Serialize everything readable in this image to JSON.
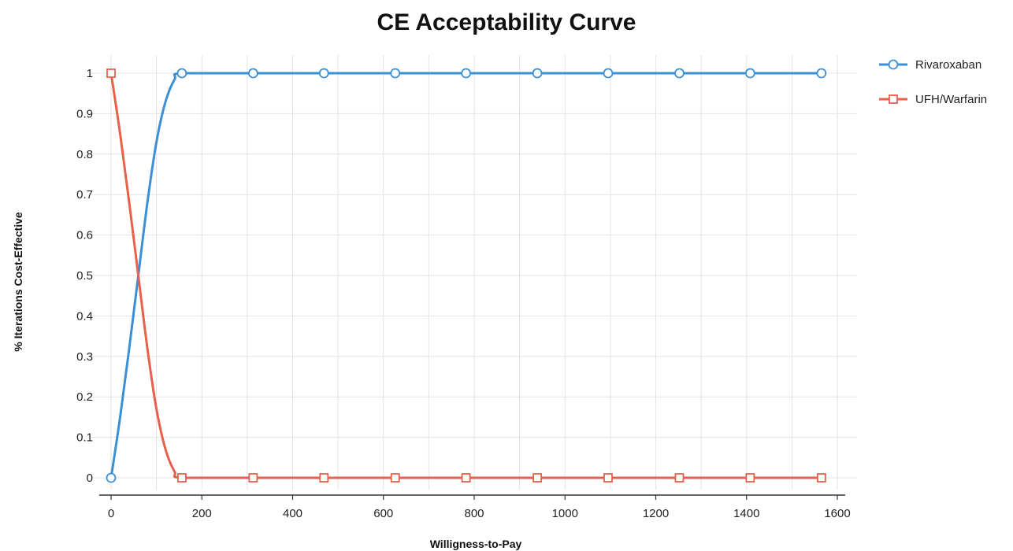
{
  "chart_data": {
    "type": "line",
    "title": "CE Acceptability Curve",
    "xlabel": "Willigness-to-Pay",
    "ylabel": "% Iterations Cost-Effective",
    "xlim": [
      0,
      1600
    ],
    "ylim": [
      0,
      1
    ],
    "xticks": [
      0,
      200,
      400,
      600,
      800,
      1000,
      1200,
      1400,
      1600
    ],
    "yticks": [
      0,
      0.1,
      0.2,
      0.3,
      0.4,
      0.5,
      0.6,
      0.7,
      0.8,
      0.9,
      1
    ],
    "grid": true,
    "legend_position": "right",
    "series": [
      {
        "name": "Rivaroxaban",
        "color": "#3a8fd6",
        "marker": "circle",
        "markers": [
          [
            0,
            0
          ],
          [
            156,
            1
          ],
          [
            313,
            1
          ],
          [
            469,
            1
          ],
          [
            626,
            1
          ],
          [
            782,
            1
          ],
          [
            939,
            1
          ],
          [
            1095,
            1
          ],
          [
            1252,
            1
          ],
          [
            1408,
            1
          ],
          [
            1565,
            1
          ]
        ],
        "curve": [
          [
            0,
            0
          ],
          [
            20,
            0.15
          ],
          [
            40,
            0.32
          ],
          [
            60,
            0.5
          ],
          [
            80,
            0.68
          ],
          [
            100,
            0.83
          ],
          [
            120,
            0.93
          ],
          [
            140,
            0.985
          ],
          [
            156,
            1
          ],
          [
            313,
            1
          ],
          [
            469,
            1
          ],
          [
            626,
            1
          ],
          [
            782,
            1
          ],
          [
            939,
            1
          ],
          [
            1095,
            1
          ],
          [
            1252,
            1
          ],
          [
            1408,
            1
          ],
          [
            1565,
            1
          ]
        ]
      },
      {
        "name": "UFH/Warfarin",
        "color": "#e8604c",
        "marker": "square",
        "markers": [
          [
            0,
            1
          ],
          [
            156,
            0
          ],
          [
            313,
            0
          ],
          [
            469,
            0
          ],
          [
            626,
            0
          ],
          [
            782,
            0
          ],
          [
            939,
            0
          ],
          [
            1095,
            0
          ],
          [
            1252,
            0
          ],
          [
            1408,
            0
          ],
          [
            1565,
            0
          ]
        ],
        "curve": [
          [
            0,
            1
          ],
          [
            20,
            0.85
          ],
          [
            40,
            0.68
          ],
          [
            60,
            0.5
          ],
          [
            80,
            0.32
          ],
          [
            100,
            0.17
          ],
          [
            120,
            0.07
          ],
          [
            140,
            0.015
          ],
          [
            156,
            0
          ],
          [
            313,
            0
          ],
          [
            469,
            0
          ],
          [
            626,
            0
          ],
          [
            782,
            0
          ],
          [
            939,
            0
          ],
          [
            1095,
            0
          ],
          [
            1252,
            0
          ],
          [
            1408,
            0
          ],
          [
            1565,
            0
          ]
        ]
      }
    ]
  }
}
